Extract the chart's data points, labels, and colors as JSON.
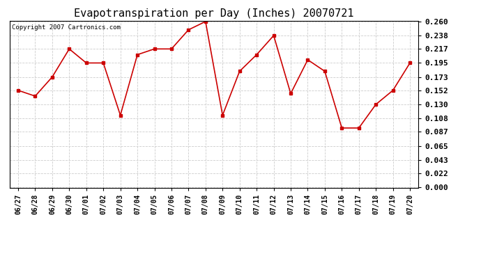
{
  "title": "Evapotranspiration per Day (Inches) 20070721",
  "copyright": "Copyright 2007 Cartronics.com",
  "dates": [
    "06/27",
    "06/28",
    "06/29",
    "06/30",
    "07/01",
    "07/02",
    "07/03",
    "07/04",
    "07/05",
    "07/06",
    "07/07",
    "07/08",
    "07/09",
    "07/10",
    "07/11",
    "07/12",
    "07/13",
    "07/14",
    "07/15",
    "07/16",
    "07/17",
    "07/18",
    "07/19",
    "07/20"
  ],
  "values": [
    0.152,
    0.143,
    0.173,
    0.217,
    0.195,
    0.195,
    0.113,
    0.208,
    0.217,
    0.217,
    0.247,
    0.26,
    0.113,
    0.182,
    0.208,
    0.238,
    0.147,
    0.2,
    0.182,
    0.093,
    0.093,
    0.13,
    0.152,
    0.195
  ],
  "line_color": "#cc0000",
  "marker": "s",
  "marker_size": 3,
  "ylim": [
    0.0,
    0.26
  ],
  "yticks": [
    0.0,
    0.022,
    0.043,
    0.065,
    0.087,
    0.108,
    0.13,
    0.152,
    0.173,
    0.195,
    0.217,
    0.238,
    0.26
  ],
  "background_color": "#ffffff",
  "grid_color": "#cccccc",
  "title_fontsize": 11,
  "copyright_fontsize": 6.5,
  "tick_fontsize": 7,
  "ytick_fontsize": 8
}
